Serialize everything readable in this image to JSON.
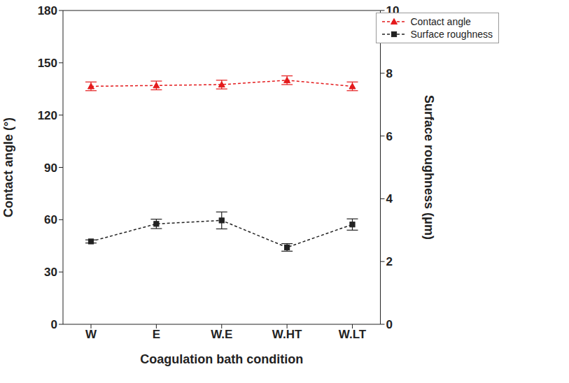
{
  "chart_data": {
    "type": "line",
    "x_label": "Coagulation bath condition",
    "y_label": "Contact angle (°)",
    "y2_label": "Surface roughness (μm)",
    "categories": [
      "W",
      "E",
      "W.E",
      "W.HT",
      "W.LT"
    ],
    "ylim": [
      0,
      180
    ],
    "yticks": [
      0,
      30,
      60,
      90,
      120,
      150,
      180
    ],
    "y2lim": [
      0,
      10
    ],
    "y2ticks": [
      0,
      2,
      4,
      6,
      8,
      10
    ],
    "grid": false,
    "legend": "upper right",
    "series": [
      {
        "name": "Contact angle",
        "color": "#e41a1c",
        "marker": "triangle",
        "line_style": "dashed",
        "values": [
          136.5,
          137,
          137.5,
          140,
          136.5
        ],
        "errors": [
          2.5,
          2.5,
          2.5,
          2.5,
          2.5
        ]
      },
      {
        "name": "Surface roughness",
        "color": "#222222",
        "marker": "square",
        "line_style": "dashed",
        "axis": "y2",
        "values": [
          2.64,
          3.2,
          3.31,
          2.45,
          3.18
        ],
        "errors": [
          0.05,
          0.15,
          0.27,
          0.12,
          0.18
        ]
      }
    ]
  }
}
